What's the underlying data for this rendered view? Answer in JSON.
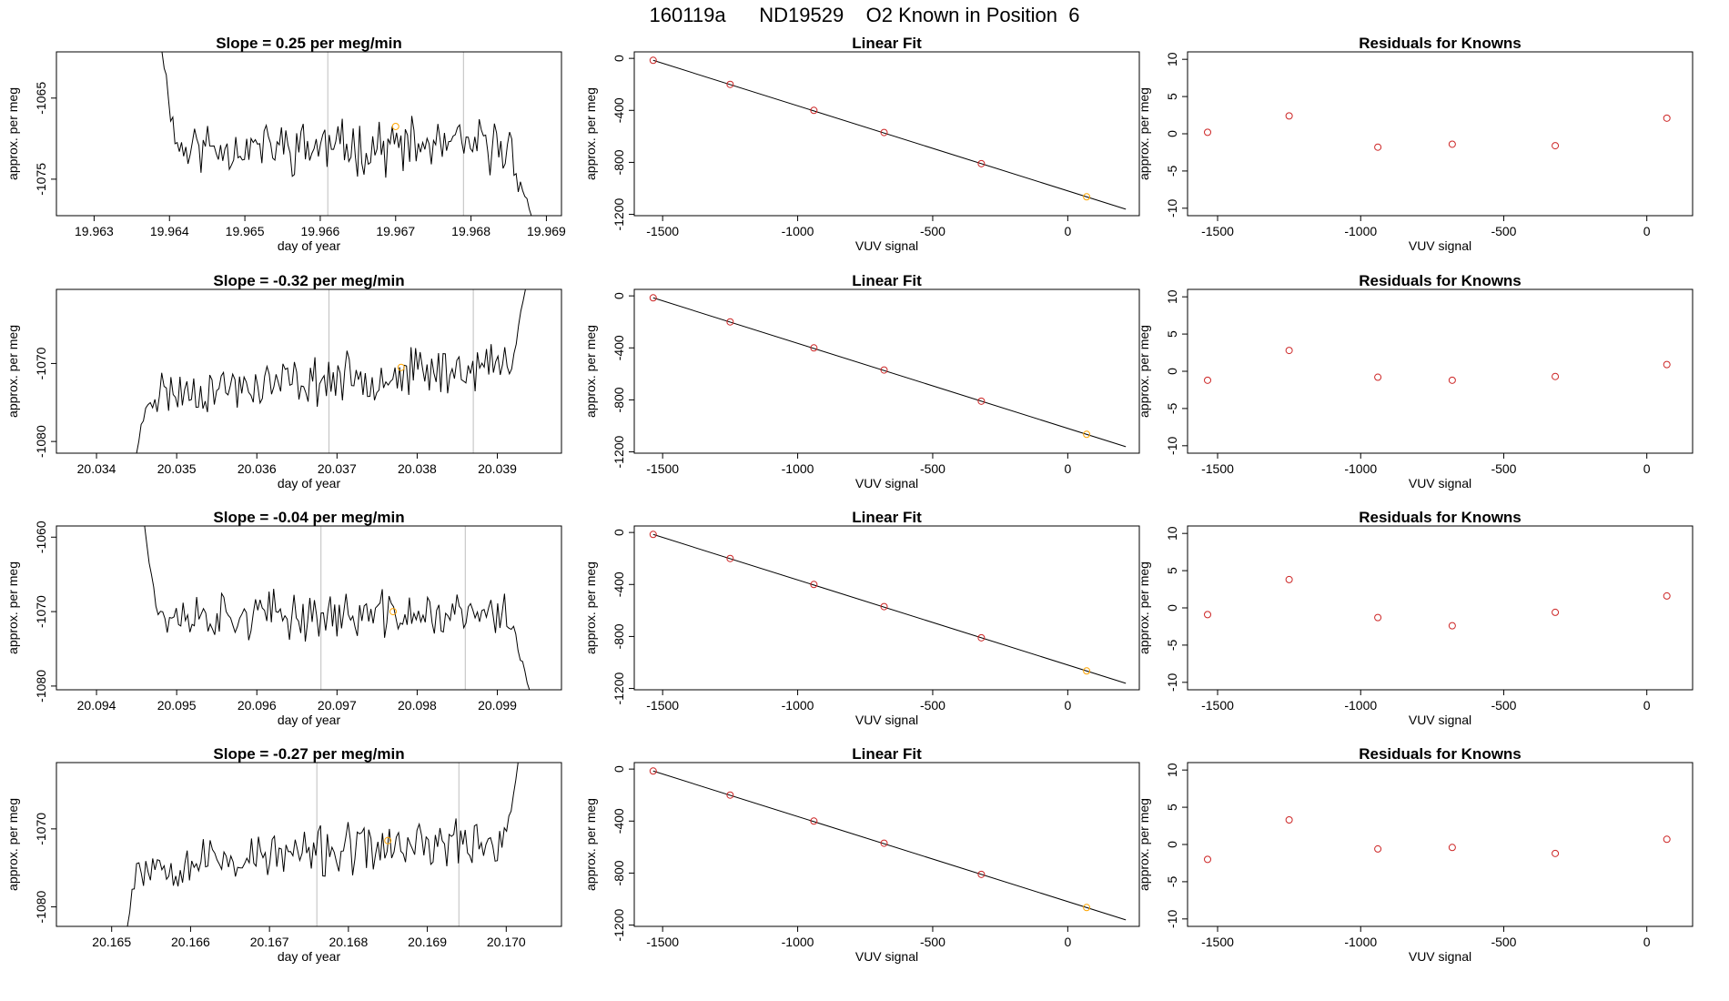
{
  "figure_title": "160119a      ND19529    O2 Known in Position  6",
  "colors": {
    "trace": "#000000",
    "cursor": "#bebebe",
    "known_marker": "#ffa500",
    "fit_point": "#cd2626",
    "frame": "#000000"
  },
  "chart_data": [
    {
      "type": "line",
      "panel": "row1-time-series",
      "title": "Slope =  0.25  per meg/min",
      "xlabel": "day of year",
      "ylabel": "approx. per meg",
      "xlim": [
        19.9625,
        19.9692
      ],
      "ylim": [
        -1079.5,
        -1059.3
      ],
      "xticks": [
        19.963,
        19.964,
        19.965,
        19.966,
        19.967,
        19.968,
        19.969
      ],
      "xtick_labels": [
        "19.963",
        "19.964",
        "19.965",
        "19.966",
        "19.967",
        "19.968",
        "19.969"
      ],
      "yticks": [
        -1065,
        -1075
      ],
      "ytick_labels": [
        "-1065",
        "-1075"
      ],
      "vlines": [
        19.9661,
        19.9679
      ],
      "known_marker": {
        "x": 19.967,
        "y": -1068.5
      },
      "series": [
        {
          "x_start": 19.9639,
          "x_end": 19.9688,
          "seed": 11,
          "base": -1071.0,
          "amp": 2.5,
          "start_y": -1059.3,
          "end_y": -1079.5,
          "ramp_start": 0.04,
          "ramp_end": 0.06,
          "n": 170
        }
      ]
    },
    {
      "type": "line",
      "panel": "row1-linear-fit",
      "title": "Linear Fit",
      "xlabel": "VUV signal",
      "ylabel": "approx. per meg",
      "xlim": [
        -1605,
        265
      ],
      "ylim": [
        -1210,
        50
      ],
      "xticks": [
        -1500,
        -1000,
        -500,
        0
      ],
      "xtick_labels": [
        "-1500",
        "-1000",
        "-500",
        "0"
      ],
      "yticks": [
        0,
        -400,
        -800,
        -1200
      ],
      "ytick_labels": [
        "0",
        "-400",
        "-800",
        "-1200"
      ],
      "fit_line": {
        "x": [
          -1535,
          215
        ],
        "y": [
          -15,
          -1160
        ]
      },
      "points": {
        "x": [
          -1535,
          -1250,
          -940,
          -680,
          -320
        ],
        "y": [
          -15,
          -200,
          -400,
          -570,
          -810
        ]
      },
      "known": {
        "x": 70,
        "y": -1065
      }
    },
    {
      "type": "scatter",
      "panel": "row1-residuals",
      "title": "Residuals for Knowns",
      "xlabel": "VUV signal",
      "ylabel": "approx. per meg",
      "xlim": [
        -1605,
        160
      ],
      "ylim": [
        -11,
        11
      ],
      "xticks": [
        -1500,
        -1000,
        -500,
        0
      ],
      "xtick_labels": [
        "-1500",
        "-1000",
        "-500",
        "0"
      ],
      "yticks": [
        10,
        5,
        0,
        -5,
        -10
      ],
      "ytick_labels": [
        "10",
        "5",
        "0",
        "-5",
        "-10"
      ],
      "points": {
        "x": [
          -1535,
          -1250,
          -940,
          -680,
          -320,
          70
        ],
        "y": [
          0.2,
          2.4,
          -1.8,
          -1.4,
          -1.6,
          2.1
        ]
      }
    },
    {
      "type": "line",
      "panel": "row2-time-series",
      "title": "Slope =  -0.32  per meg/min",
      "xlabel": "day of year",
      "ylabel": "approx. per meg",
      "xlim": [
        20.0335,
        20.0398
      ],
      "ylim": [
        -1081.5,
        -1060.5
      ],
      "xticks": [
        20.034,
        20.035,
        20.036,
        20.037,
        20.038,
        20.039
      ],
      "xtick_labels": [
        "20.034",
        "20.035",
        "20.036",
        "20.037",
        "20.038",
        "20.039"
      ],
      "yticks": [
        -1070,
        -1080
      ],
      "ytick_labels": [
        "-1070",
        "-1080"
      ],
      "vlines": [
        20.0369,
        20.0387
      ],
      "known_marker": {
        "x": 20.0378,
        "y": -1070.5
      },
      "series": [
        {
          "x_start": 20.0345,
          "x_end": 20.03935,
          "seed": 23,
          "base": -1072.0,
          "amp": 2.3,
          "start_y": -1081.5,
          "end_y": -1060.5,
          "ramp_start": 0.03,
          "ramp_end": 0.04,
          "trend": 4.0,
          "n": 170
        }
      ],
      "pre_flat": {
        "x0": 20.0335,
        "x1": 20.0345,
        "y": -1081.5
      }
    },
    {
      "type": "line",
      "panel": "row2-linear-fit",
      "title": "Linear Fit",
      "xlabel": "VUV signal",
      "ylabel": "approx. per meg",
      "xlim": [
        -1605,
        265
      ],
      "ylim": [
        -1210,
        50
      ],
      "xticks": [
        -1500,
        -1000,
        -500,
        0
      ],
      "xtick_labels": [
        "-1500",
        "-1000",
        "-500",
        "0"
      ],
      "yticks": [
        0,
        -400,
        -800,
        -1200
      ],
      "ytick_labels": [
        "0",
        "-400",
        "-800",
        "-1200"
      ],
      "fit_line": {
        "x": [
          -1535,
          215
        ],
        "y": [
          -15,
          -1160
        ]
      },
      "points": {
        "x": [
          -1535,
          -1250,
          -940,
          -680,
          -320
        ],
        "y": [
          -15,
          -200,
          -400,
          -570,
          -810
        ]
      },
      "known": {
        "x": 70,
        "y": -1065
      }
    },
    {
      "type": "scatter",
      "panel": "row2-residuals",
      "title": "Residuals for Knowns",
      "xlabel": "VUV signal",
      "ylabel": "approx. per meg",
      "xlim": [
        -1605,
        160
      ],
      "ylim": [
        -11,
        11
      ],
      "xticks": [
        -1500,
        -1000,
        -500,
        0
      ],
      "xtick_labels": [
        "-1500",
        "-1000",
        "-500",
        "0"
      ],
      "yticks": [
        10,
        5,
        0,
        -5,
        -10
      ],
      "ytick_labels": [
        "10",
        "5",
        "0",
        "-5",
        "-10"
      ],
      "points": {
        "x": [
          -1535,
          -1250,
          -940,
          -680,
          -320,
          70
        ],
        "y": [
          -1.2,
          2.8,
          -0.8,
          -1.2,
          -0.7,
          0.9
        ]
      }
    },
    {
      "type": "line",
      "panel": "row3-time-series",
      "title": "Slope =  -0.04  per meg/min",
      "xlabel": "day of year",
      "ylabel": "approx. per meg",
      "xlim": [
        20.0935,
        20.0998
      ],
      "ylim": [
        -1080.5,
        -1058.5
      ],
      "xticks": [
        20.094,
        20.095,
        20.096,
        20.097,
        20.098,
        20.099
      ],
      "xtick_labels": [
        "20.094",
        "20.095",
        "20.096",
        "20.097",
        "20.098",
        "20.099"
      ],
      "yticks": [
        -1060,
        -1070,
        -1080
      ],
      "ytick_labels": [
        "-1060",
        "-1070",
        "-1080"
      ],
      "vlines": [
        20.0968,
        20.0986
      ],
      "known_marker": {
        "x": 20.0977,
        "y": -1070.0
      },
      "series": [
        {
          "x_start": 20.0946,
          "x_end": 20.0994,
          "seed": 37,
          "base": -1070.5,
          "amp": 2.4,
          "start_y": -1058.5,
          "end_y": -1080.5,
          "ramp_start": 0.035,
          "ramp_end": 0.05,
          "n": 170
        }
      ]
    },
    {
      "type": "line",
      "panel": "row3-linear-fit",
      "title": "Linear Fit",
      "xlabel": "VUV signal",
      "ylabel": "approx. per meg",
      "xlim": [
        -1605,
        265
      ],
      "ylim": [
        -1210,
        50
      ],
      "xticks": [
        -1500,
        -1000,
        -500,
        0
      ],
      "xtick_labels": [
        "-1500",
        "-1000",
        "-500",
        "0"
      ],
      "yticks": [
        0,
        -400,
        -800,
        -1200
      ],
      "ytick_labels": [
        "0",
        "-400",
        "-800",
        "-1200"
      ],
      "fit_line": {
        "x": [
          -1535,
          215
        ],
        "y": [
          -15,
          -1160
        ]
      },
      "points": {
        "x": [
          -1535,
          -1250,
          -940,
          -680,
          -320
        ],
        "y": [
          -15,
          -200,
          -400,
          -570,
          -810
        ]
      },
      "known": {
        "x": 70,
        "y": -1065
      }
    },
    {
      "type": "scatter",
      "panel": "row3-residuals",
      "title": "Residuals for Knowns",
      "xlabel": "VUV signal",
      "ylabel": "approx. per meg",
      "xlim": [
        -1605,
        160
      ],
      "ylim": [
        -11,
        11
      ],
      "xticks": [
        -1500,
        -1000,
        -500,
        0
      ],
      "xtick_labels": [
        "-1500",
        "-1000",
        "-500",
        "0"
      ],
      "yticks": [
        10,
        5,
        0,
        -5,
        -10
      ],
      "ytick_labels": [
        "10",
        "5",
        "0",
        "-5",
        "-10"
      ],
      "points": {
        "x": [
          -1535,
          -1250,
          -940,
          -680,
          -320,
          70
        ],
        "y": [
          -0.9,
          3.8,
          -1.3,
          -2.4,
          -0.6,
          1.6
        ]
      }
    },
    {
      "type": "line",
      "panel": "row4-time-series",
      "title": "Slope =  -0.27  per meg/min",
      "xlabel": "day of year",
      "ylabel": "approx. per meg",
      "xlim": [
        20.1643,
        20.1707
      ],
      "ylim": [
        -1082.5,
        -1061.5
      ],
      "xticks": [
        20.165,
        20.166,
        20.167,
        20.168,
        20.169,
        20.17
      ],
      "xtick_labels": [
        "20.165",
        "20.166",
        "20.167",
        "20.168",
        "20.169",
        "20.170"
      ],
      "yticks": [
        -1070,
        -1080
      ],
      "ytick_labels": [
        "-1070",
        "-1080"
      ],
      "vlines": [
        20.1676,
        20.1694
      ],
      "known_marker": {
        "x": 20.1685,
        "y": -1071.5
      },
      "series": [
        {
          "x_start": 20.1652,
          "x_end": 20.17015,
          "seed": 53,
          "base": -1073.0,
          "amp": 2.4,
          "start_y": -1082.5,
          "end_y": -1061.5,
          "ramp_start": 0.02,
          "ramp_end": 0.03,
          "trend": 3.5,
          "n": 170
        }
      ]
    },
    {
      "type": "line",
      "panel": "row4-linear-fit",
      "title": "Linear Fit",
      "xlabel": "VUV signal",
      "ylabel": "approx. per meg",
      "xlim": [
        -1605,
        265
      ],
      "ylim": [
        -1210,
        50
      ],
      "xticks": [
        -1500,
        -1000,
        -500,
        0
      ],
      "xtick_labels": [
        "-1500",
        "-1000",
        "-500",
        "0"
      ],
      "yticks": [
        0,
        -400,
        -800,
        -1200
      ],
      "ytick_labels": [
        "0",
        "-400",
        "-800",
        "-1200"
      ],
      "fit_line": {
        "x": [
          -1535,
          215
        ],
        "y": [
          -15,
          -1160
        ]
      },
      "points": {
        "x": [
          -1535,
          -1250,
          -940,
          -680,
          -320
        ],
        "y": [
          -15,
          -200,
          -400,
          -570,
          -810
        ]
      },
      "known": {
        "x": 70,
        "y": -1065
      }
    },
    {
      "type": "scatter",
      "panel": "row4-residuals",
      "title": "Residuals for Knowns",
      "xlabel": "VUV signal",
      "ylabel": "approx. per meg",
      "xlim": [
        -1605,
        160
      ],
      "ylim": [
        -11,
        11
      ],
      "xticks": [
        -1500,
        -1000,
        -500,
        0
      ],
      "xtick_labels": [
        "-1500",
        "-1000",
        "-500",
        "0"
      ],
      "yticks": [
        10,
        5,
        0,
        -5,
        -10
      ],
      "ytick_labels": [
        "10",
        "5",
        "0",
        "-5",
        "-10"
      ],
      "points": {
        "x": [
          -1535,
          -1250,
          -940,
          -680,
          -320,
          70
        ],
        "y": [
          -2.0,
          3.3,
          -0.6,
          -0.4,
          -1.2,
          0.7
        ]
      }
    }
  ]
}
